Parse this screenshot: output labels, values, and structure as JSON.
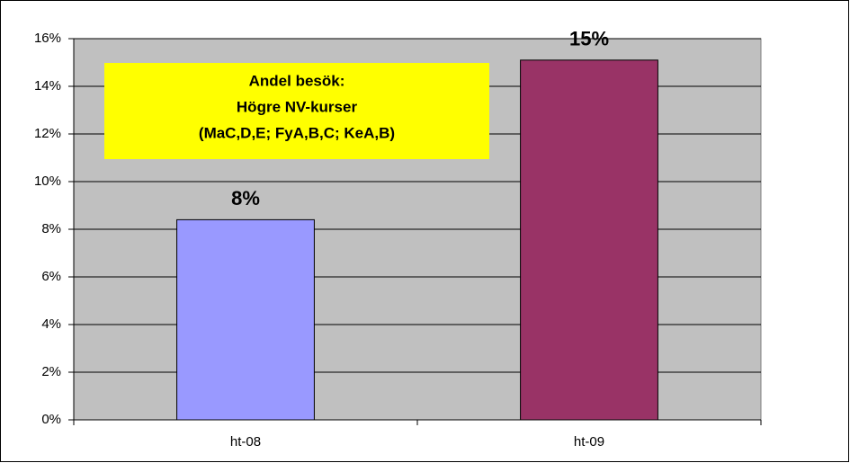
{
  "chart_data": {
    "type": "bar",
    "annotation": [
      "Andel besök:",
      "Högre NV-kurser",
      "(MaC,D,E; FyA,B,C; KeA,B)"
    ],
    "categories": [
      "ht-08",
      "ht-09"
    ],
    "values": [
      8.4,
      15.1
    ],
    "value_labels": [
      "8%",
      "15%"
    ],
    "colors": [
      "#9999ff",
      "#993366"
    ],
    "ylim": [
      0,
      16
    ],
    "yticks": [
      {
        "value": 0,
        "label": "0%"
      },
      {
        "value": 2,
        "label": "2%"
      },
      {
        "value": 4,
        "label": "4%"
      },
      {
        "value": 6,
        "label": "6%"
      },
      {
        "value": 8,
        "label": "8%"
      },
      {
        "value": 10,
        "label": "10%"
      },
      {
        "value": 12,
        "label": "12%"
      },
      {
        "value": 14,
        "label": "14%"
      },
      {
        "value": 16,
        "label": "16%"
      }
    ],
    "grid": true
  }
}
